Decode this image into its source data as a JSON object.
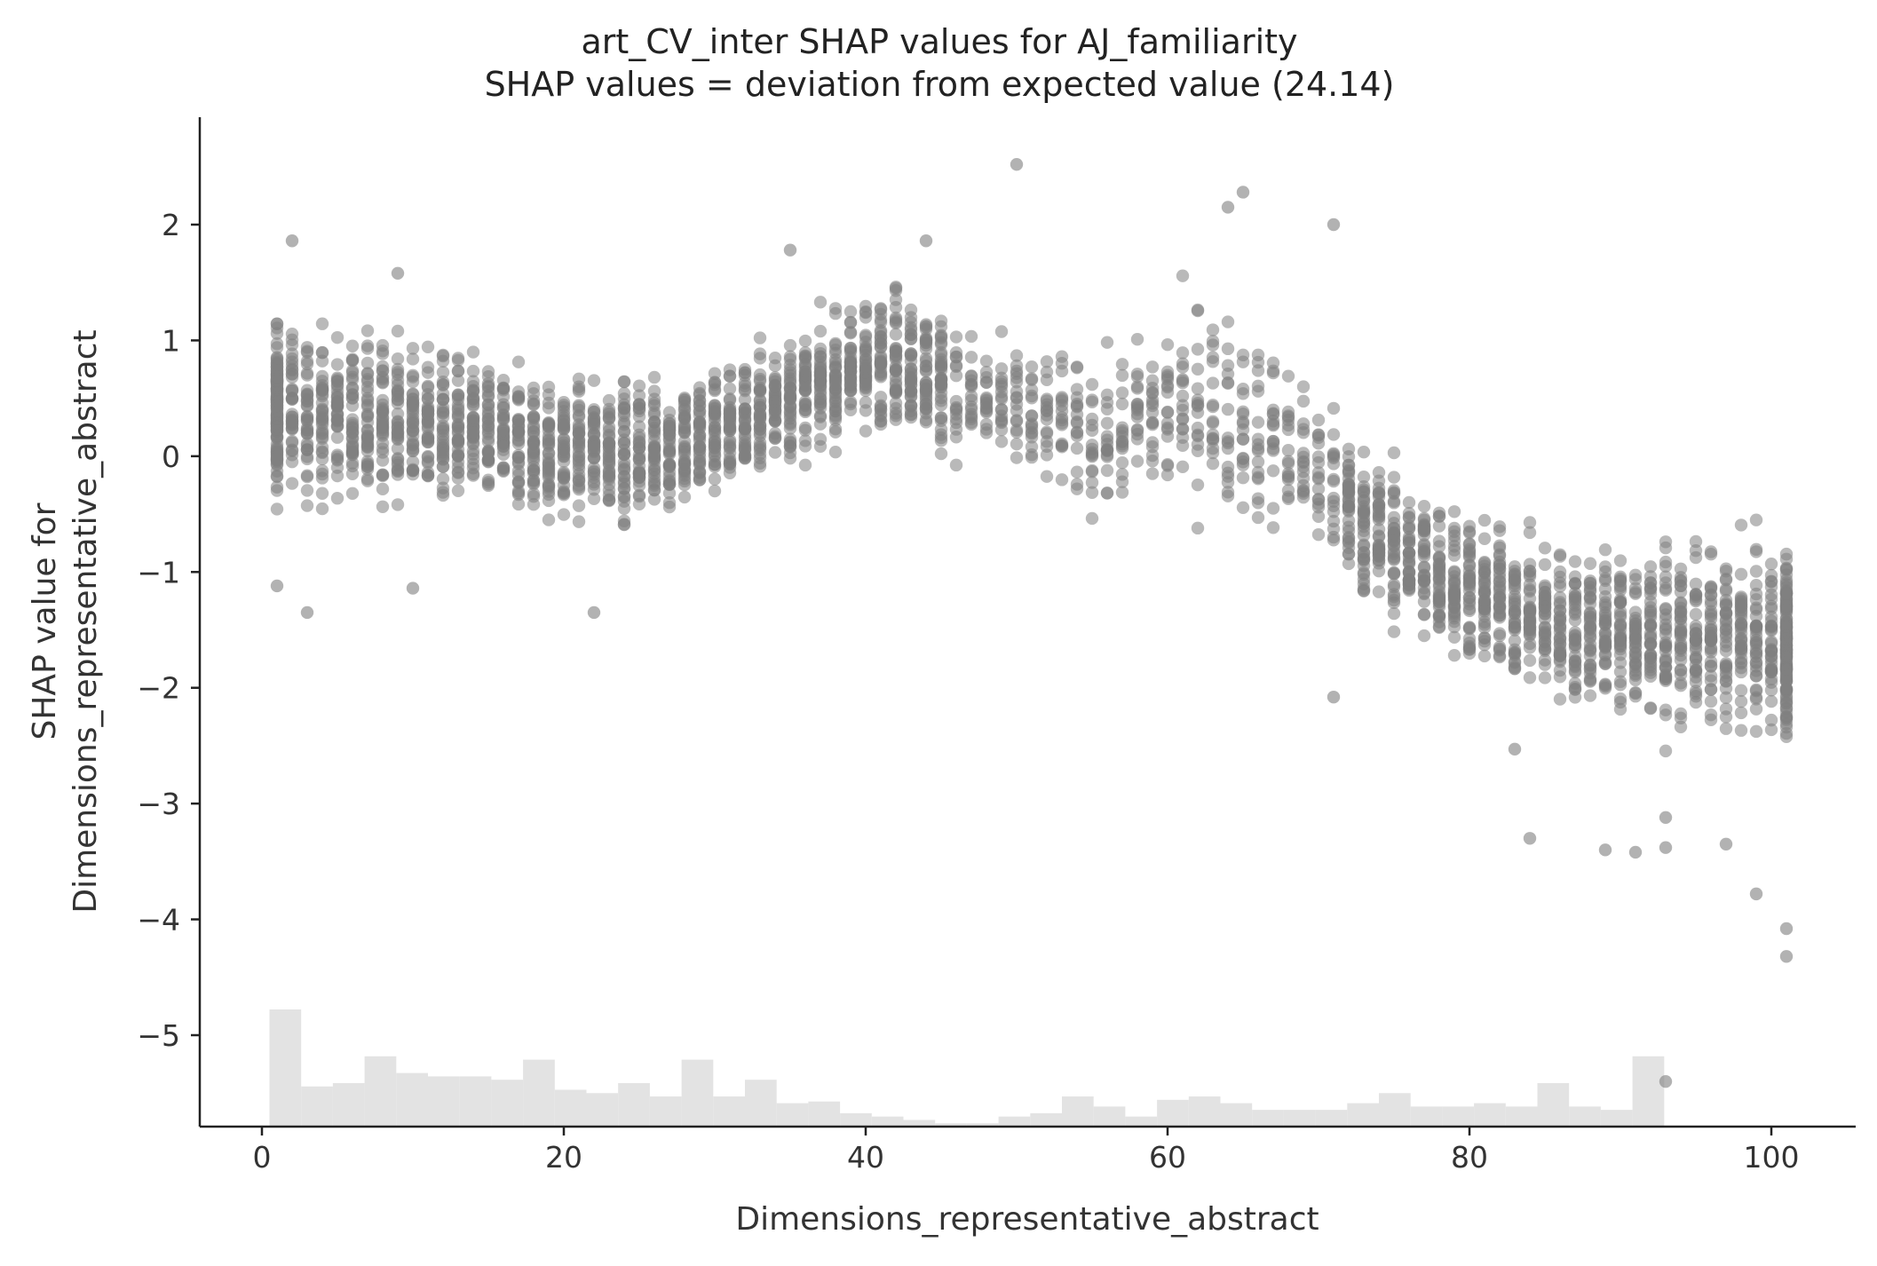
{
  "chart_data": {
    "type": "scatter",
    "title": "art_CV_inter SHAP values for AJ_familiarity",
    "subtitle": "SHAP values = deviation from expected value (24.14)",
    "xlabel": "Dimensions_representative_abstract",
    "ylabel_line1": "SHAP value for",
    "ylabel_line2": "Dimensions_representative_abstract",
    "xlim": [
      -4,
      105
    ],
    "ylim": [
      -5.8,
      2.9
    ],
    "x_ticks": [
      0,
      20,
      40,
      60,
      80,
      100
    ],
    "x_tick_labels": [
      "0",
      "20",
      "40",
      "60",
      "80",
      "100"
    ],
    "y_ticks": [
      -5,
      -4,
      -3,
      -2,
      -1,
      0,
      1,
      2
    ],
    "y_tick_labels": [
      "−5",
      "−4",
      "−3",
      "−2",
      "−1",
      "0",
      "1",
      "2"
    ],
    "grid": false,
    "point_color": "#7f7f7f",
    "hist_color": "#e3e3e3",
    "trend": [
      {
        "x": 1,
        "center": 0.4,
        "spread": 0.55
      },
      {
        "x": 10,
        "center": 0.3,
        "spread": 0.5
      },
      {
        "x": 20,
        "center": 0.05,
        "spread": 0.45
      },
      {
        "x": 28,
        "center": 0.1,
        "spread": 0.45
      },
      {
        "x": 35,
        "center": 0.5,
        "spread": 0.4
      },
      {
        "x": 42,
        "center": 0.9,
        "spread": 0.45
      },
      {
        "x": 47,
        "center": 0.5,
        "spread": 0.45
      },
      {
        "x": 52,
        "center": 0.3,
        "spread": 0.45
      },
      {
        "x": 56,
        "center": 0.15,
        "spread": 0.5
      },
      {
        "x": 62,
        "center": 0.5,
        "spread": 0.7
      },
      {
        "x": 68,
        "center": 0.1,
        "spread": 0.6
      },
      {
        "x": 74,
        "center": -0.7,
        "spread": 0.5
      },
      {
        "x": 80,
        "center": -1.15,
        "spread": 0.5
      },
      {
        "x": 86,
        "center": -1.45,
        "spread": 0.5
      },
      {
        "x": 92,
        "center": -1.55,
        "spread": 0.55
      },
      {
        "x": 101,
        "center": -1.6,
        "spread": 0.6
      }
    ],
    "outliers": [
      {
        "x": 50,
        "y": 2.52
      },
      {
        "x": 65,
        "y": 2.28
      },
      {
        "x": 64,
        "y": 2.15
      },
      {
        "x": 71,
        "y": 2.0
      },
      {
        "x": 2,
        "y": 1.86
      },
      {
        "x": 44,
        "y": 1.86
      },
      {
        "x": 35,
        "y": 1.78
      },
      {
        "x": 9,
        "y": 1.58
      },
      {
        "x": 3,
        "y": -1.35
      },
      {
        "x": 22,
        "y": -1.35
      },
      {
        "x": 71,
        "y": -2.08
      },
      {
        "x": 83,
        "y": -2.53
      },
      {
        "x": 84,
        "y": -3.3
      },
      {
        "x": 89,
        "y": -3.4
      },
      {
        "x": 91,
        "y": -3.42
      },
      {
        "x": 93,
        "y": -3.38
      },
      {
        "x": 97,
        "y": -3.35
      },
      {
        "x": 99,
        "y": -3.78
      },
      {
        "x": 101,
        "y": -4.08
      },
      {
        "x": 101,
        "y": -4.32
      },
      {
        "x": 93,
        "y": -5.4
      },
      {
        "x": 93,
        "y": -3.12
      },
      {
        "x": 1,
        "y": -1.12
      },
      {
        "x": 10,
        "y": -1.14
      }
    ],
    "histogram": {
      "bin_width": 2.1,
      "start": 0.5,
      "counts": [
        70,
        24,
        26,
        42,
        32,
        30,
        30,
        28,
        40,
        22,
        20,
        26,
        18,
        40,
        18,
        28,
        14,
        15,
        8,
        6,
        4,
        2,
        2,
        6,
        8,
        18,
        12,
        6,
        16,
        18,
        14,
        10,
        10,
        10,
        14,
        20,
        12,
        12,
        14,
        12,
        26,
        12,
        10,
        42
      ]
    }
  }
}
